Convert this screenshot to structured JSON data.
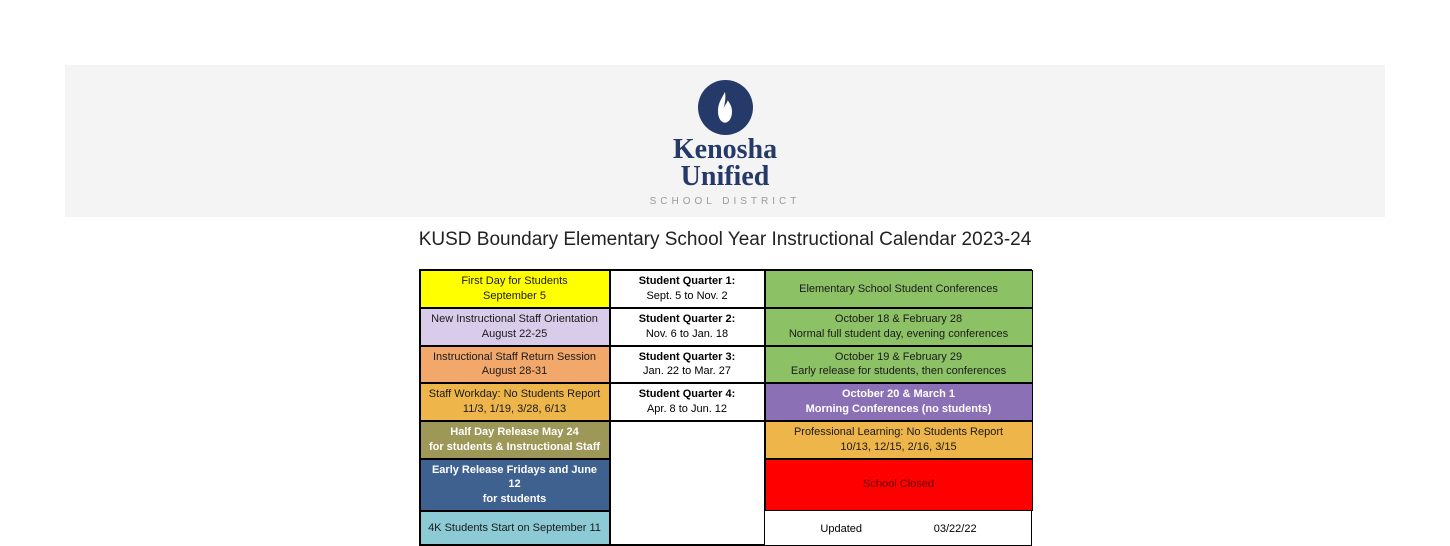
{
  "brand": {
    "line1": "Kenosha",
    "line2": "Unified",
    "sub": "SCHOOL DISTRICT"
  },
  "title": "KUSD Boundary Elementary School Year Instructional Calendar 2023-24",
  "colors": {
    "yellow": "#ffff00",
    "lavender": "#d8ccea",
    "orange": "#f2a86a",
    "amber": "#edb54a",
    "olive": "#9d9758",
    "steel": "#3f6190",
    "cyan": "#8ccad6",
    "white": "#ffffff",
    "green": "#8cc166",
    "purple": "#8c70b5",
    "red": "#ff0000",
    "navy": "#263a6a"
  },
  "left": [
    {
      "l1": "First Day for Students",
      "l2": "September 5",
      "bg": "yellow",
      "cls": "dark-text"
    },
    {
      "l1": "New Instructional Staff Orientation",
      "l2": "August 22-25",
      "bg": "lavender",
      "cls": "dark-text"
    },
    {
      "l1": "Instructional Staff Return Session",
      "l2": "August 28-31",
      "bg": "orange",
      "cls": "dark-text"
    },
    {
      "l1": "Staff Workday: No Students Report",
      "l2": "11/3, 1/19, 3/28, 6/13",
      "bg": "amber",
      "cls": "dark-text"
    },
    {
      "l1": "Half Day Release May 24",
      "l2": "for students & Instructional Staff",
      "bg": "olive",
      "cls": "white-text"
    },
    {
      "l1": "Early Release Fridays and June 12",
      "l2": "for students",
      "bg": "steel",
      "cls": "white-text"
    },
    {
      "l1": "4K Students Start on September 11",
      "l2": "",
      "bg": "cyan",
      "cls": "dark-text"
    }
  ],
  "mid": [
    {
      "l1": "Student Quarter 1:",
      "l2": "Sept. 5 to Nov. 2"
    },
    {
      "l1": "Student Quarter 2:",
      "l2": "Nov. 6 to Jan. 18"
    },
    {
      "l1": "Student Quarter 3:",
      "l2": "Jan. 22 to Mar. 27"
    },
    {
      "l1": "Student Quarter 4:",
      "l2": "Apr. 8 to Jun. 12"
    }
  ],
  "right": [
    {
      "l1": "Elementary School Student Conferences",
      "l2": "",
      "bg": "green",
      "cls": "dark-text"
    },
    {
      "l1": "October 18 & February 28",
      "l2": "Normal full student day, evening conferences",
      "bg": "green",
      "cls": "dark-text"
    },
    {
      "l1": "October 19 & February 29",
      "l2": "Early release for students, then conferences",
      "bg": "green",
      "cls": "dark-text"
    },
    {
      "l1": "October 20 & March 1",
      "l2": "Morning Conferences (no students)",
      "bg": "purple",
      "cls": "white-text"
    },
    {
      "l1": "Professional Learning: No Students Report",
      "l2": "10/13, 12/15, 2/16, 3/15",
      "bg": "amber",
      "cls": "dark-text"
    },
    {
      "l1": "School Closed",
      "l2": "",
      "bg": "red",
      "cls": "dark-red-text"
    }
  ],
  "updated": {
    "label": "Updated",
    "date": "03/22/22"
  }
}
